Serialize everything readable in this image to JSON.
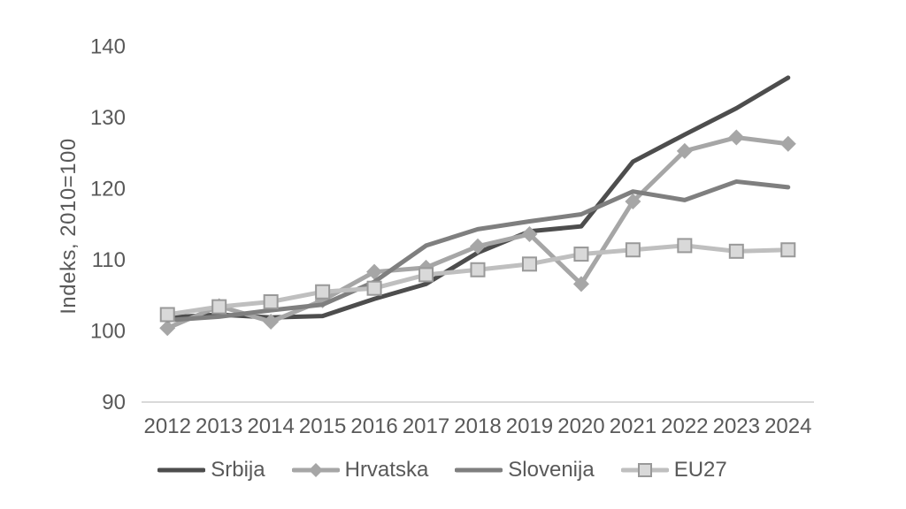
{
  "chart_data": {
    "type": "line",
    "title": "",
    "xlabel": "",
    "ylabel": "Indeks, 2010=100",
    "categories": [
      2012,
      2013,
      2014,
      2015,
      2016,
      2017,
      2018,
      2019,
      2020,
      2021,
      2022,
      2023,
      2024
    ],
    "y_ticks": [
      90,
      100,
      110,
      120,
      130,
      140
    ],
    "ylim": [
      90,
      140
    ],
    "grid": false,
    "legend_position": "bottom",
    "series": [
      {
        "name": "Srbija",
        "color": "#4d4d4d",
        "marker": "none",
        "values": [
          101.9,
          102.3,
          101.9,
          102.1,
          104.5,
          106.6,
          111.0,
          114.0,
          114.7,
          123.8,
          127.6,
          131.3,
          135.6
        ]
      },
      {
        "name": "Hrvatska",
        "color": "#a6a6a6",
        "marker": "diamond",
        "marker_fill": "#a6a6a6",
        "values": [
          100.4,
          103.5,
          101.3,
          104.3,
          108.3,
          108.9,
          111.9,
          113.6,
          106.6,
          118.2,
          125.3,
          127.2,
          126.3
        ]
      },
      {
        "name": "Slovenija",
        "color": "#7f7f7f",
        "marker": "none",
        "values": [
          101.5,
          102.0,
          102.9,
          103.7,
          106.9,
          112.0,
          114.3,
          115.4,
          116.4,
          119.6,
          118.4,
          121.0,
          120.2
        ]
      },
      {
        "name": "EU27",
        "color": "#bfbfbf",
        "marker": "square",
        "marker_fill": "#d9d9d9",
        "marker_stroke": "#999999",
        "values": [
          102.3,
          103.4,
          104.1,
          105.5,
          106.0,
          107.9,
          108.6,
          109.4,
          110.8,
          111.4,
          112.0,
          111.2,
          111.4
        ]
      }
    ]
  },
  "colors": {
    "background": "#ffffff",
    "text": "#595959",
    "axis_line": "#d9d9d9"
  }
}
